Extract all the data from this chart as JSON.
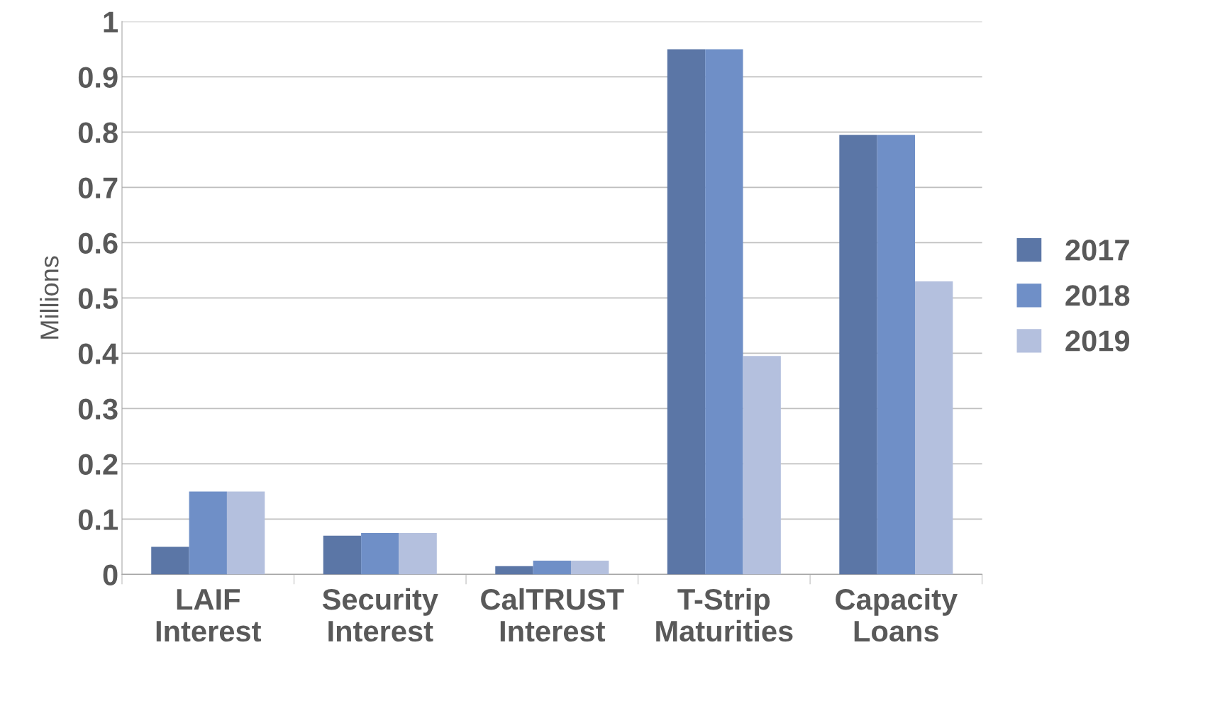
{
  "chart_data": {
    "type": "bar",
    "ylabel": "Millions",
    "categories": [
      "LAIF\nInterest",
      "Security\nInterest",
      "CalTRUST\nInterest",
      "T-Strip\nMaturities",
      "Capacity\nLoans"
    ],
    "series": [
      {
        "name": "2017",
        "color": "#5b76a6",
        "values": [
          0.05,
          0.07,
          0.015,
          0.95,
          0.795
        ]
      },
      {
        "name": "2018",
        "color": "#6f8fc7",
        "values": [
          0.15,
          0.075,
          0.025,
          0.95,
          0.795
        ]
      },
      {
        "name": "2019",
        "color": "#b4c0de",
        "values": [
          0.15,
          0.075,
          0.025,
          0.395,
          0.53
        ]
      }
    ],
    "ylim": [
      0,
      1
    ],
    "yticks": [
      0,
      0.1,
      0.2,
      0.3,
      0.4,
      0.5,
      0.6,
      0.7,
      0.8,
      0.9,
      1
    ],
    "grid": "y",
    "legend": "right"
  }
}
